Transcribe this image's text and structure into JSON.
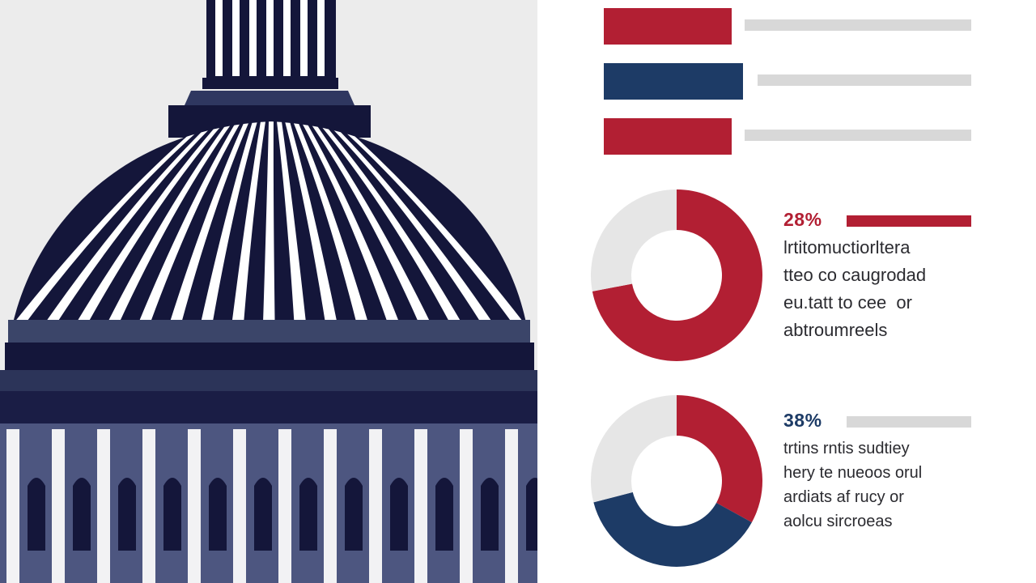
{
  "colors": {
    "red": "#b21f33",
    "navy": "#1d3b66",
    "dome_dark": "#14163a",
    "grey_track": "#e6e6e6",
    "line_grey": "#d8d8d8"
  },
  "illustration": {
    "subject": "capitol-dome",
    "icon": "capitol-dome-icon"
  },
  "chart_data": [
    {
      "type": "bar",
      "id": "legend-bars",
      "title": "",
      "categories": [
        "",
        "",
        ""
      ],
      "series": [
        {
          "values": [
            1,
            1,
            1
          ],
          "colors": [
            "#b21f33",
            "#1d3b66",
            "#b21f33"
          ]
        }
      ]
    },
    {
      "type": "pie",
      "id": "donut-1",
      "title": "",
      "label": "28%",
      "slices": [
        {
          "label": "",
          "value": 72,
          "color": "#b21f33"
        },
        {
          "label": "",
          "value": 28,
          "color": "#e6e6e6"
        }
      ]
    },
    {
      "type": "pie",
      "id": "donut-2",
      "title": "",
      "label": "38%",
      "slices": [
        {
          "label": "",
          "value": 33,
          "color": "#b21f33"
        },
        {
          "label": "",
          "value": 38,
          "color": "#1d3b66"
        },
        {
          "label": "",
          "value": 29,
          "color": "#e6e6e6"
        }
      ]
    }
  ],
  "stats": [
    {
      "percent": "28%",
      "lines": [
        "lrtitomuctiorltera",
        "tteo co caugrodad",
        "eu.tatt to cee  or",
        "abtroumreels"
      ]
    },
    {
      "percent": "38%",
      "lines": [
        "trtins rntis sudtiey",
        "hery te nueoos orul",
        "ardiats af rucy or",
        "aolcu sircroeas"
      ]
    }
  ]
}
